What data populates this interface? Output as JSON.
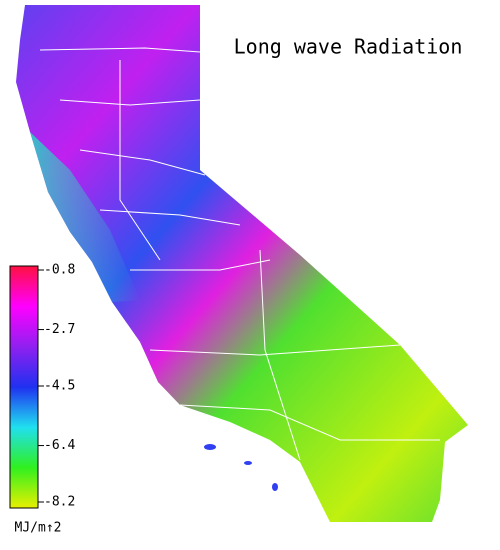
{
  "title": "Long wave Radiation",
  "colorbar": {
    "lim": [
      -8.2,
      -0.8
    ],
    "ticks": [
      -0.8,
      -2.7,
      -4.5,
      -6.4,
      -8.2
    ],
    "colors": [
      "#e8f000",
      "#30f020",
      "#20e0f0",
      "#2030f0",
      "#9020f0",
      "#ff00ff",
      "#ff1040"
    ],
    "label": "MJ/m↑2"
  }
}
